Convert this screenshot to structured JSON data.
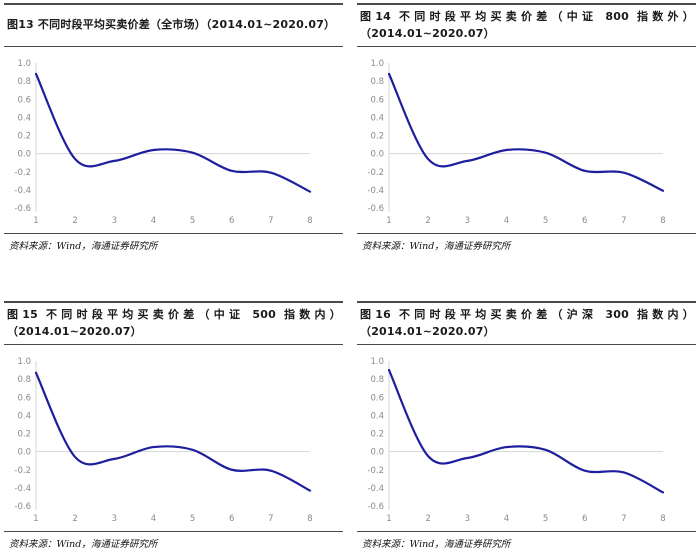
{
  "page": {
    "background": "#ffffff"
  },
  "source_note": "资料来源：Wind，海通证券研究所",
  "panels": [
    {
      "title": "图13 不同时段平均买卖价差（全市场）（2014.01~2020.07）",
      "source": "资料来源：Wind，海通证券研究所"
    },
    {
      "title": "图14 不同时段平均买卖价差（中证 800 指数外）（2014.01~2020.07）",
      "source": "资料来源：Wind，海通证券研究所"
    },
    {
      "title": "图15 不同时段平均买卖价差（中证 500 指数内）（2014.01~2020.07）",
      "source": "资料来源：Wind，海通证券研究所"
    },
    {
      "title": "图16 不同时段平均买卖价差（沪深 300 指数内）（2014.01~2020.07）",
      "source": "资料来源：Wind，海通证券研究所"
    }
  ],
  "chart_data": [
    {
      "type": "line",
      "title": "图13 不同时段平均买卖价差（全市场）（2014.01~2020.07）",
      "x": [
        1,
        2,
        3,
        4,
        5,
        6,
        7,
        8
      ],
      "xticks": [
        1,
        2,
        3,
        4,
        5,
        6,
        7,
        8
      ],
      "series": [
        {
          "name": "平均买卖价差",
          "values": [
            0.88,
            -0.06,
            -0.08,
            0.04,
            0.01,
            -0.19,
            -0.21,
            -0.42
          ]
        }
      ],
      "xlabel": "",
      "ylabel": "",
      "ylim": [
        -0.6,
        1.0
      ],
      "yticks": [
        "1.0",
        "0.8",
        "0.6",
        "0.4",
        "0.2",
        "0.0",
        "-0.2",
        "-0.4",
        "-0.6"
      ],
      "grid": "zero-line-only",
      "legend": "none",
      "smooth": true,
      "line_color": "#1e1e9e",
      "axis_color": "#d6d6d6",
      "tick_color": "#8a8a8a"
    },
    {
      "type": "line",
      "title": "图14 不同时段平均买卖价差（中证 800 指数外）（2014.01~2020.07）",
      "x": [
        1,
        2,
        3,
        4,
        5,
        6,
        7,
        8
      ],
      "xticks": [
        1,
        2,
        3,
        4,
        5,
        6,
        7,
        8
      ],
      "series": [
        {
          "name": "平均买卖价差",
          "values": [
            0.88,
            -0.06,
            -0.08,
            0.04,
            0.01,
            -0.19,
            -0.21,
            -0.41
          ]
        }
      ],
      "xlabel": "",
      "ylabel": "",
      "ylim": [
        -0.6,
        1.0
      ],
      "yticks": [
        "1.0",
        "0.8",
        "0.6",
        "0.4",
        "0.2",
        "0.0",
        "-0.2",
        "-0.4",
        "-0.6"
      ],
      "grid": "zero-line-only",
      "legend": "none",
      "smooth": true,
      "line_color": "#1e1e9e",
      "axis_color": "#d6d6d6",
      "tick_color": "#8a8a8a"
    },
    {
      "type": "line",
      "title": "图15 不同时段平均买卖价差（中证 500 指数内）（2014.01~2020.07）",
      "x": [
        1,
        2,
        3,
        4,
        5,
        6,
        7,
        8
      ],
      "xticks": [
        1,
        2,
        3,
        4,
        5,
        6,
        7,
        8
      ],
      "series": [
        {
          "name": "平均买卖价差",
          "values": [
            0.87,
            -0.06,
            -0.08,
            0.05,
            0.02,
            -0.2,
            -0.21,
            -0.43
          ]
        }
      ],
      "xlabel": "",
      "ylabel": "",
      "ylim": [
        -0.6,
        1.0
      ],
      "yticks": [
        "1.0",
        "0.8",
        "0.6",
        "0.4",
        "0.2",
        "0.0",
        "-0.2",
        "-0.4",
        "-0.6"
      ],
      "grid": "zero-line-only",
      "legend": "none",
      "smooth": true,
      "line_color": "#1e1e9e",
      "axis_color": "#d6d6d6",
      "tick_color": "#8a8a8a"
    },
    {
      "type": "line",
      "title": "图16 不同时段平均买卖价差（沪深 300 指数内）（2014.01~2020.07）",
      "x": [
        1,
        2,
        3,
        4,
        5,
        6,
        7,
        8
      ],
      "xticks": [
        1,
        2,
        3,
        4,
        5,
        6,
        7,
        8
      ],
      "series": [
        {
          "name": "平均买卖价差",
          "values": [
            0.9,
            -0.05,
            -0.07,
            0.05,
            0.02,
            -0.21,
            -0.23,
            -0.45
          ]
        }
      ],
      "xlabel": "",
      "ylabel": "",
      "ylim": [
        -0.6,
        1.0
      ],
      "yticks": [
        "1.0",
        "0.8",
        "0.6",
        "0.4",
        "0.2",
        "0.0",
        "-0.2",
        "-0.4",
        "-0.6"
      ],
      "grid": "zero-line-only",
      "legend": "none",
      "smooth": true,
      "line_color": "#1e1e9e",
      "axis_color": "#d6d6d6",
      "tick_color": "#8a8a8a"
    }
  ]
}
